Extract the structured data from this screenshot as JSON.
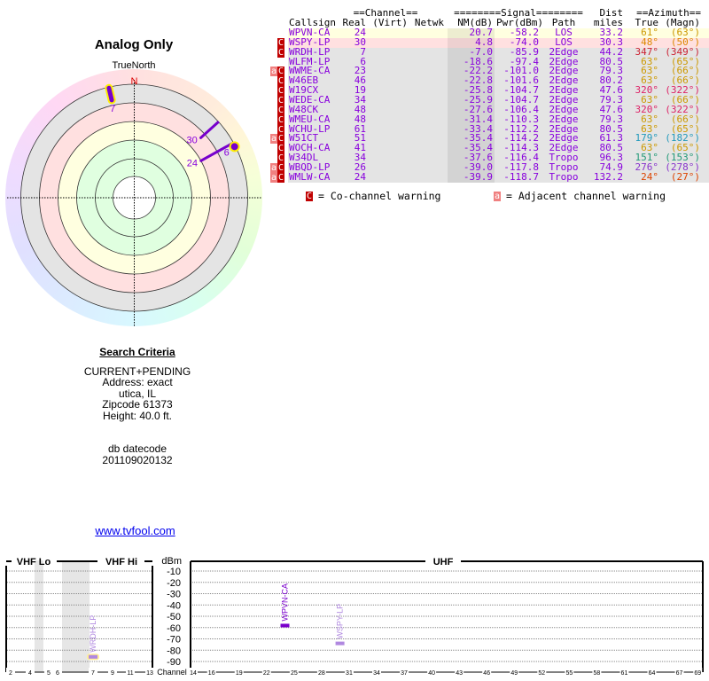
{
  "polar": {
    "title": "Analog Only",
    "north_label": "TrueNorth",
    "n_marker": "N",
    "ring_colors": [
      "#e4e4e4",
      "#ffe0e0",
      "#ffffe0",
      "#e0ffe0"
    ]
  },
  "criteria": {
    "heading": "Search Criteria",
    "lines": [
      "CURRENT+PENDING",
      "Address: exact",
      "utica, IL",
      "Zipcode 61373",
      "Height: 40.0 ft."
    ],
    "db_label": "db datecode",
    "db_value": "201109020132",
    "link": "www.tvfool.com"
  },
  "table": {
    "group_headers": {
      "channel": "==Channel==",
      "signal": "========Signal========",
      "dist": "Dist",
      "azimuth": "==Azimuth=="
    },
    "headers": {
      "callsign": "Callsign",
      "real": "Real",
      "virt": "(Virt)",
      "netwk": "Netwk",
      "nm": "NM(dB)",
      "pwr": "Pwr(dBm)",
      "path": "Path",
      "dist": "miles",
      "true": "True",
      "magn": "(Magn)"
    },
    "rows": [
      {
        "warn": "",
        "callsign": "WPVN-CA",
        "real": "24",
        "virt": "",
        "netwk": "",
        "nm": "20.7",
        "pwr": "-58.2",
        "path": "LOS",
        "dist": "33.2",
        "true": "61°",
        "magn": "(63°)",
        "bg": "#ffffe0",
        "az_color": "#cc9900"
      },
      {
        "warn": "C",
        "callsign": "WSPY-LP",
        "real": "30",
        "virt": "",
        "netwk": "",
        "nm": "4.8",
        "pwr": "-74.0",
        "path": "LOS",
        "dist": "30.3",
        "true": "48°",
        "magn": "(50°)",
        "bg": "#ffe0e0",
        "az_color": "#dd8800"
      },
      {
        "warn": "C",
        "callsign": "WRDH-LP",
        "real": "7",
        "virt": "",
        "netwk": "",
        "nm": "-7.0",
        "pwr": "-85.9",
        "path": "2Edge",
        "dist": "44.2",
        "true": "347°",
        "magn": "(349°)",
        "bg": "#e4e4e4",
        "az_color": "#cc2233"
      },
      {
        "warn": "",
        "callsign": "WLFM-LP",
        "real": "6",
        "virt": "",
        "netwk": "",
        "nm": "-18.6",
        "pwr": "-97.4",
        "path": "2Edge",
        "dist": "80.5",
        "true": "63°",
        "magn": "(65°)",
        "bg": "#e4e4e4",
        "az_color": "#cc9900"
      },
      {
        "warn": "aC",
        "callsign": "WWME-CA",
        "real": "23",
        "virt": "",
        "netwk": "",
        "nm": "-22.2",
        "pwr": "-101.0",
        "path": "2Edge",
        "dist": "79.3",
        "true": "63°",
        "magn": "(66°)",
        "bg": "#e4e4e4",
        "az_color": "#cc9900"
      },
      {
        "warn": "C",
        "callsign": "W46EB",
        "real": "46",
        "virt": "",
        "netwk": "",
        "nm": "-22.8",
        "pwr": "-101.6",
        "path": "2Edge",
        "dist": "80.2",
        "true": "63°",
        "magn": "(66°)",
        "bg": "#e4e4e4",
        "az_color": "#cc9900"
      },
      {
        "warn": "C",
        "callsign": "W19CX",
        "real": "19",
        "virt": "",
        "netwk": "",
        "nm": "-25.8",
        "pwr": "-104.7",
        "path": "2Edge",
        "dist": "47.6",
        "true": "320°",
        "magn": "(322°)",
        "bg": "#e4e4e4",
        "az_color": "#dd2266"
      },
      {
        "warn": "C",
        "callsign": "WEDE-CA",
        "real": "34",
        "virt": "",
        "netwk": "",
        "nm": "-25.9",
        "pwr": "-104.7",
        "path": "2Edge",
        "dist": "79.3",
        "true": "63°",
        "magn": "(66°)",
        "bg": "#e4e4e4",
        "az_color": "#cc9900"
      },
      {
        "warn": "C",
        "callsign": "W48CK",
        "real": "48",
        "virt": "",
        "netwk": "",
        "nm": "-27.6",
        "pwr": "-106.4",
        "path": "2Edge",
        "dist": "47.6",
        "true": "320°",
        "magn": "(322°)",
        "bg": "#e4e4e4",
        "az_color": "#dd2266"
      },
      {
        "warn": "C",
        "callsign": "WMEU-CA",
        "real": "48",
        "virt": "",
        "netwk": "",
        "nm": "-31.4",
        "pwr": "-110.3",
        "path": "2Edge",
        "dist": "79.3",
        "true": "63°",
        "magn": "(66°)",
        "bg": "#e4e4e4",
        "az_color": "#cc9900"
      },
      {
        "warn": "C",
        "callsign": "WCHU-LP",
        "real": "61",
        "virt": "",
        "netwk": "",
        "nm": "-33.4",
        "pwr": "-112.2",
        "path": "2Edge",
        "dist": "80.5",
        "true": "63°",
        "magn": "(65°)",
        "bg": "#e4e4e4",
        "az_color": "#cc9900"
      },
      {
        "warn": "aC",
        "callsign": "W51CT",
        "real": "51",
        "virt": "",
        "netwk": "",
        "nm": "-35.4",
        "pwr": "-114.2",
        "path": "2Edge",
        "dist": "61.3",
        "true": "179°",
        "magn": "(182°)",
        "bg": "#e4e4e4",
        "az_color": "#2299bb"
      },
      {
        "warn": "C",
        "callsign": "WOCH-CA",
        "real": "41",
        "virt": "",
        "netwk": "",
        "nm": "-35.4",
        "pwr": "-114.3",
        "path": "2Edge",
        "dist": "80.5",
        "true": "63°",
        "magn": "(65°)",
        "bg": "#e4e4e4",
        "az_color": "#cc9900"
      },
      {
        "warn": "C",
        "callsign": "W34DL",
        "real": "34",
        "virt": "",
        "netwk": "",
        "nm": "-37.6",
        "pwr": "-116.4",
        "path": "Tropo",
        "dist": "96.3",
        "true": "151°",
        "magn": "(153°)",
        "bg": "#e4e4e4",
        "az_color": "#229977"
      },
      {
        "warn": "aC",
        "callsign": "WBQD-LP",
        "real": "26",
        "virt": "",
        "netwk": "",
        "nm": "-39.0",
        "pwr": "-117.8",
        "path": "Tropo",
        "dist": "74.9",
        "true": "276°",
        "magn": "(278°)",
        "bg": "#e4e4e4",
        "az_color": "#8833cc"
      },
      {
        "warn": "aC",
        "callsign": "WMLW-CA",
        "real": "24",
        "virt": "",
        "netwk": "",
        "nm": "-39.9",
        "pwr": "-118.7",
        "path": "Tropo",
        "dist": "132.2",
        "true": "24°",
        "magn": "(27°)",
        "bg": "#e4e4e4",
        "az_color": "#dd4400"
      }
    ],
    "text_color": "#8800dd",
    "nm_bg": "#d4d4d4"
  },
  "legend": {
    "co_badge": "C",
    "co_text": "= Co-channel warning",
    "adj_badge": "a",
    "adj_text": "= Adjacent channel warning"
  },
  "polar_stations": [
    {
      "channel": "7",
      "azimuth": 347,
      "highlight": true,
      "shape": "bar"
    },
    {
      "channel": "30",
      "azimuth": 48,
      "highlight": false,
      "shape": "line"
    },
    {
      "channel": "24",
      "azimuth": 61,
      "highlight": false,
      "shape": "line"
    },
    {
      "channel": "6",
      "azimuth": 63,
      "highlight": true,
      "shape": "dot"
    }
  ],
  "spectrum": {
    "vhf_lo_label": "VHF Lo",
    "vhf_hi_label": "VHF Hi",
    "uhf_label": "UHF",
    "y_unit": "dBm",
    "x_label": "Channel",
    "y_ticks": [
      "-10",
      "-20",
      "-30",
      "-40",
      "-50",
      "-60",
      "-70",
      "-80",
      "-90"
    ],
    "vhf_ticks": [
      "2",
      "4",
      "5",
      "6",
      "7",
      "9",
      "11",
      "13"
    ],
    "uhf_ticks": [
      "14",
      "16",
      "19",
      "22",
      "25",
      "28",
      "31",
      "34",
      "37",
      "40",
      "43",
      "46",
      "49",
      "52",
      "55",
      "58",
      "61",
      "64",
      "67",
      "69"
    ],
    "markers": [
      {
        "callsign": "WPVN-CA",
        "channel": 24,
        "dbm": -58.2,
        "color": "#7a00cc"
      },
      {
        "callsign": "WSPY-LP",
        "channel": 30,
        "dbm": -74.0,
        "color": "#b088e0"
      },
      {
        "callsign": "WRDH-LP",
        "channel": 7,
        "dbm": -85.9,
        "color": "#b088e0",
        "highlight": true
      }
    ]
  }
}
